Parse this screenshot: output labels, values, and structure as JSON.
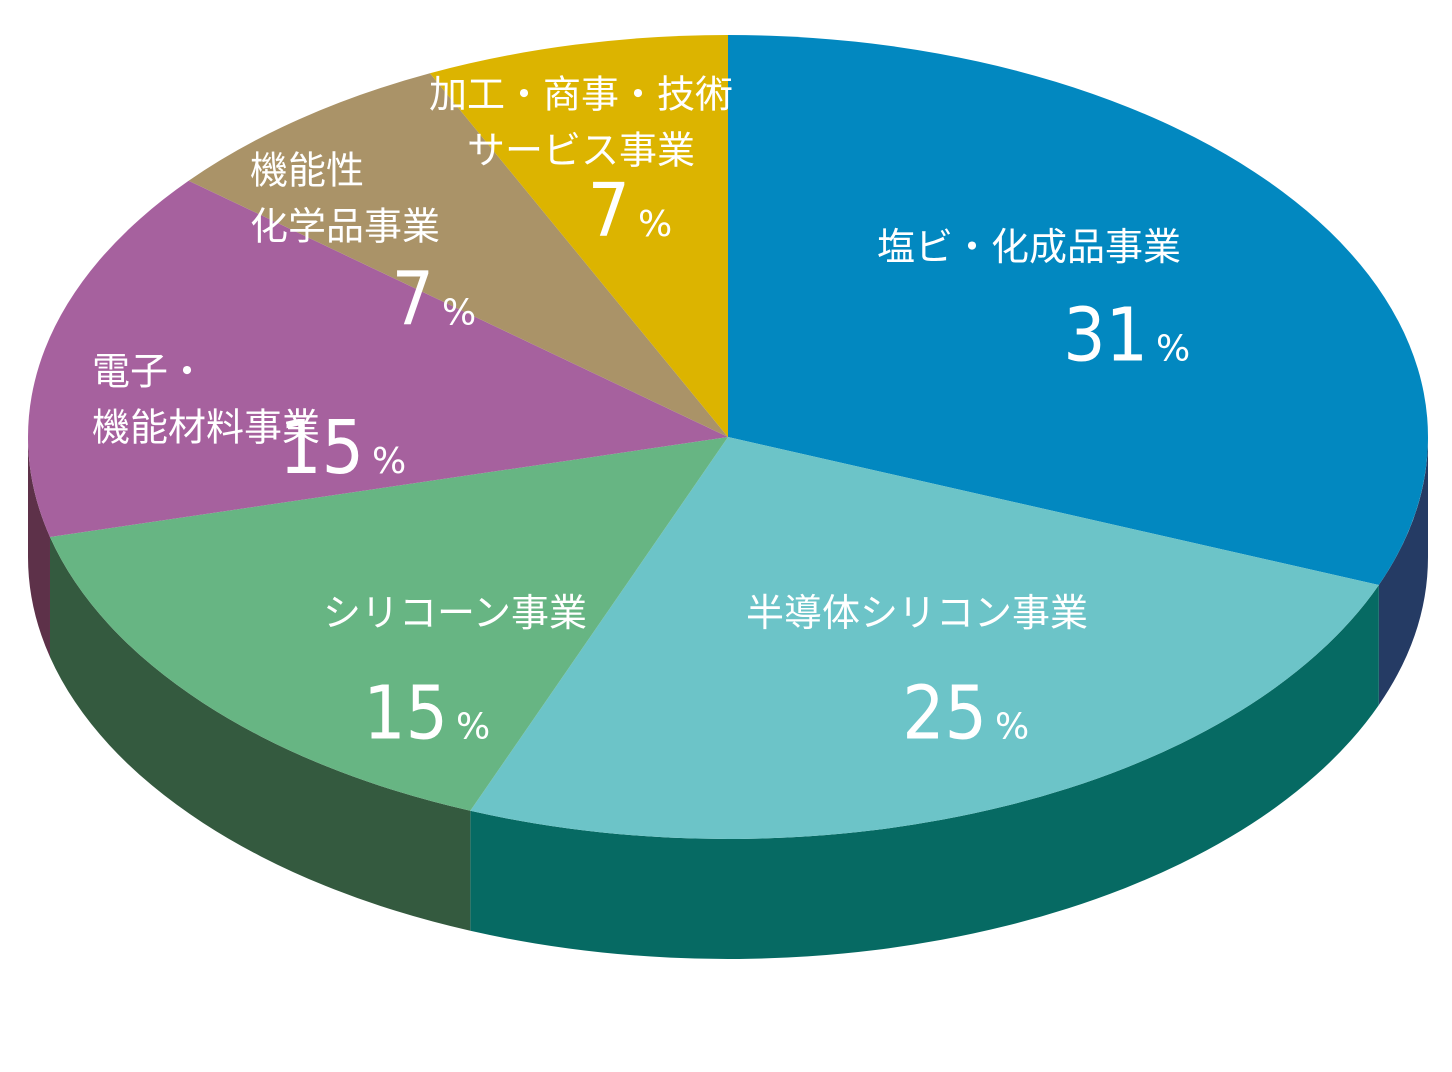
{
  "chart_data": {
    "type": "pie",
    "title": "",
    "slices": [
      {
        "label": "塩ビ・化成品事業",
        "label_lines": [
          "塩ビ・化成品事業"
        ],
        "value": 31,
        "value_text": "31",
        "unit": "%",
        "color": "#0288c0",
        "side_color": "#253b64"
      },
      {
        "label": "半導体シリコン事業",
        "label_lines": [
          "半導体シリコン事業"
        ],
        "value": 25,
        "value_text": "25",
        "unit": "%",
        "color": "#6cc4c8",
        "side_color": "#066a63"
      },
      {
        "label": "シリコーン事業",
        "label_lines": [
          "シリコーン事業"
        ],
        "value": 15,
        "value_text": "15",
        "unit": "%",
        "color": "#67b583",
        "side_color": "#345a3f"
      },
      {
        "label": "電子・機能材料事業",
        "label_lines": [
          "電子・",
          "機能材料事業"
        ],
        "value": 15,
        "value_text": "15",
        "unit": "%",
        "color": "#a6619e",
        "side_color": "#5d3149"
      },
      {
        "label": "機能性化学品事業",
        "label_lines": [
          "機能性",
          "化学品事業"
        ],
        "value": 7,
        "value_text": "7",
        "unit": "%",
        "color": "#aa9368",
        "side_color": "#5a4a34"
      },
      {
        "label": "加工・商事・技術サービス事業",
        "label_lines": [
          "加工・商事・技術",
          "サービス事業"
        ],
        "value": 7,
        "value_text": "7",
        "unit": "%",
        "color": "#dcb400",
        "side_color": "#6f5a00"
      }
    ]
  }
}
